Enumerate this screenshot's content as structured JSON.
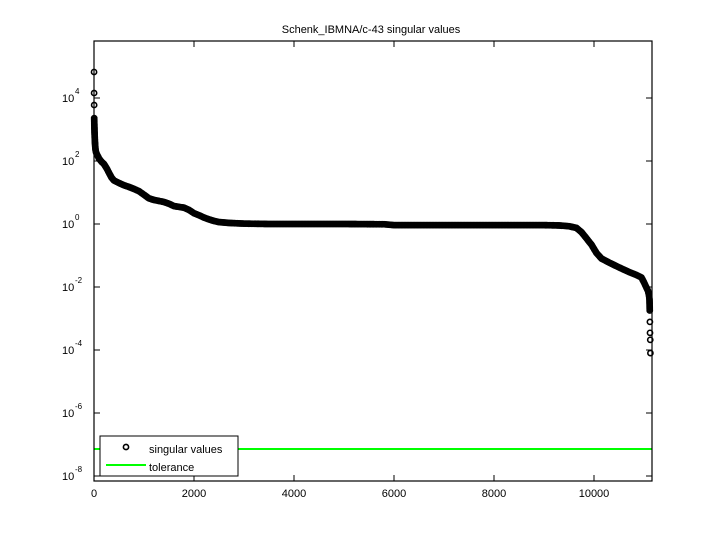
{
  "chart_data": {
    "type": "scatter",
    "title": "Schenk_IBMNA/c-43 singular values",
    "xlabel": "",
    "ylabel": "",
    "xlim": [
      0,
      11160
    ],
    "ylim": [
      1e-08,
      1000000.0
    ],
    "yscale": "log",
    "grid": false,
    "legend_position": "lower left",
    "x_ticks": [
      0,
      2000,
      4000,
      6000,
      8000,
      10000
    ],
    "x_tick_labels": [
      "0",
      "2000",
      "4000",
      "6000",
      "8000",
      "10000"
    ],
    "y_ticks": [
      10000.0,
      100.0,
      1.0,
      0.01,
      0.0001,
      1e-06,
      1e-08
    ],
    "y_tick_labels": [
      {
        "base": "10",
        "exp": "4"
      },
      {
        "base": "10",
        "exp": "2"
      },
      {
        "base": "10",
        "exp": "0"
      },
      {
        "base": "10",
        "exp": "-2"
      },
      {
        "base": "10",
        "exp": "-4"
      },
      {
        "base": "10",
        "exp": "-6"
      },
      {
        "base": "10",
        "exp": "-8"
      }
    ],
    "series": [
      {
        "name": "singular values",
        "style": "markers",
        "marker": "circle",
        "color": "#000000",
        "points": [
          [
            1,
            67000
          ],
          [
            2,
            14400
          ],
          [
            3,
            6000
          ],
          [
            4,
            2300
          ],
          [
            6,
            1600
          ],
          [
            8,
            1200
          ],
          [
            10,
            900
          ],
          [
            14,
            600
          ],
          [
            18,
            420
          ],
          [
            24,
            300
          ],
          [
            30,
            230
          ],
          [
            40,
            190
          ],
          [
            60,
            160
          ],
          [
            80,
            140
          ],
          [
            100,
            120
          ],
          [
            150,
            95
          ],
          [
            200,
            80
          ],
          [
            250,
            60
          ],
          [
            300,
            42
          ],
          [
            350,
            30
          ],
          [
            400,
            24
          ],
          [
            500,
            20
          ],
          [
            600,
            17
          ],
          [
            700,
            15
          ],
          [
            800,
            13
          ],
          [
            900,
            11
          ],
          [
            1000,
            8.5
          ],
          [
            1100,
            6.5
          ],
          [
            1200,
            5.8
          ],
          [
            1400,
            5.0
          ],
          [
            1500,
            4.4
          ],
          [
            1600,
            3.7
          ],
          [
            1800,
            3.3
          ],
          [
            1900,
            2.8
          ],
          [
            2000,
            2.2
          ],
          [
            2100,
            1.9
          ],
          [
            2200,
            1.6
          ],
          [
            2300,
            1.4
          ],
          [
            2400,
            1.25
          ],
          [
            2500,
            1.15
          ],
          [
            2700,
            1.08
          ],
          [
            3000,
            1.03
          ],
          [
            3500,
            1.0
          ],
          [
            4000,
            1.0
          ],
          [
            4500,
            1.0
          ],
          [
            5000,
            1.0
          ],
          [
            5800,
            0.98
          ],
          [
            6000,
            0.92
          ],
          [
            6500,
            0.92
          ],
          [
            7000,
            0.92
          ],
          [
            7500,
            0.92
          ],
          [
            8000,
            0.92
          ],
          [
            8500,
            0.92
          ],
          [
            9000,
            0.92
          ],
          [
            9300,
            0.9
          ],
          [
            9500,
            0.85
          ],
          [
            9650,
            0.75
          ],
          [
            9750,
            0.55
          ],
          [
            9850,
            0.35
          ],
          [
            9950,
            0.22
          ],
          [
            10050,
            0.12
          ],
          [
            10150,
            0.08
          ],
          [
            10300,
            0.06
          ],
          [
            10500,
            0.042
          ],
          [
            10700,
            0.03
          ],
          [
            10850,
            0.024
          ],
          [
            10950,
            0.02
          ],
          [
            11000,
            0.014
          ],
          [
            11050,
            0.0095
          ],
          [
            11080,
            0.0075
          ],
          [
            11100,
            0.0055
          ],
          [
            11110,
            0.004
          ],
          [
            11115,
            0.0018
          ],
          [
            11118,
            0.00078
          ],
          [
            11120,
            0.00035
          ],
          [
            11125,
            0.00021
          ],
          [
            11128,
            8e-05
          ]
        ]
      },
      {
        "name": "tolerance",
        "style": "line",
        "color": "#00ff00",
        "value": 7.2e-08
      }
    ]
  },
  "legend": {
    "items": [
      {
        "label": "singular values",
        "symbol": "circle-marker"
      },
      {
        "label": "tolerance",
        "symbol": "green-line"
      }
    ]
  }
}
